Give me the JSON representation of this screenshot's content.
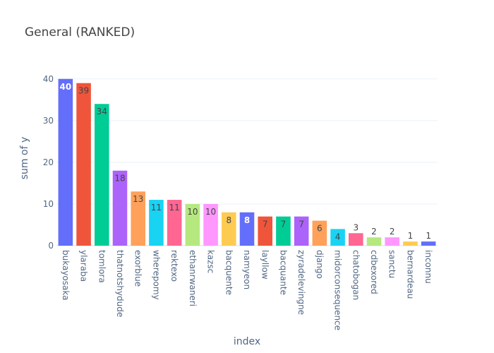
{
  "chart_data": {
    "type": "bar",
    "title": "General (RANKED)",
    "xlabel": "index",
    "ylabel": "sum of y",
    "ylim": [
      0,
      42
    ],
    "yticks": [
      0,
      10,
      20,
      30,
      40
    ],
    "grid": true,
    "categories": [
      "bukayosaka",
      "ylaraba",
      "tomlora",
      "thatnotshydude",
      "exorblue",
      "wherepomy",
      "rektexo",
      "ethanrwaneri",
      "kazsc",
      "bacquente",
      "namyeon",
      "layllow",
      "bacquante",
      "zyradelevingne",
      "django",
      "midorconsequence",
      "chatobogan",
      "cdbexored",
      "sanctu",
      "bernardeau",
      "inconnu"
    ],
    "values": [
      40,
      39,
      34,
      18,
      13,
      11,
      11,
      10,
      10,
      8,
      8,
      7,
      7,
      7,
      6,
      4,
      3,
      2,
      2,
      1,
      1
    ],
    "colors": [
      "#636efa",
      "#EF553B",
      "#00cc96",
      "#ab63fa",
      "#FFA15A",
      "#19d3f3",
      "#FF6692",
      "#B6E880",
      "#FF97FF",
      "#FECB52",
      "#636efa",
      "#EF553B",
      "#00cc96",
      "#ab63fa",
      "#FFA15A",
      "#19d3f3",
      "#FF6692",
      "#B6E880",
      "#FF97FF",
      "#FECB52",
      "#636efa"
    ],
    "label_colors": [
      "#ffffff",
      "#444444",
      "#444444",
      "#444444",
      "#444444",
      "#444444",
      "#444444",
      "#444444",
      "#444444",
      "#444444",
      "#ffffff",
      "#444444",
      "#444444",
      "#444444",
      "#444444",
      "#444444",
      "#444444",
      "#444444",
      "#444444",
      "#444444",
      "#444444"
    ]
  }
}
